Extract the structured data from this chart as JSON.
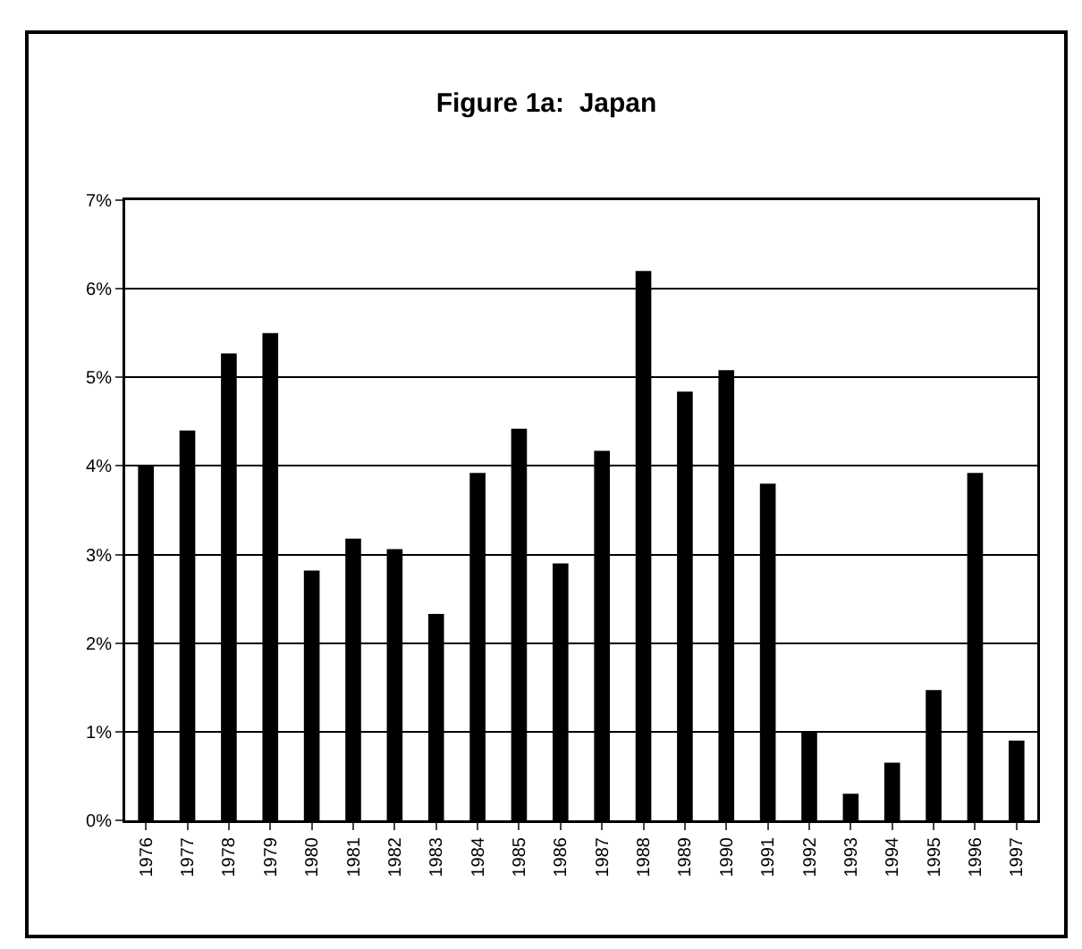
{
  "chart_data": {
    "type": "bar",
    "title": "Figure 1a:  Japan",
    "categories": [
      "1976",
      "1977",
      "1978",
      "1979",
      "1980",
      "1981",
      "1982",
      "1983",
      "1984",
      "1985",
      "1986",
      "1987",
      "1988",
      "1989",
      "1990",
      "1991",
      "1992",
      "1993",
      "1994",
      "1995",
      "1996",
      "1997"
    ],
    "values": [
      4.0,
      4.4,
      5.27,
      5.5,
      2.82,
      3.18,
      3.06,
      2.33,
      3.92,
      4.42,
      2.9,
      4.17,
      6.2,
      4.84,
      5.08,
      3.8,
      1.0,
      0.3,
      0.65,
      1.47,
      3.92,
      0.9
    ],
    "color": "#000000",
    "ylim": [
      0,
      7
    ],
    "yticks": [
      {
        "value": 0,
        "label": "0%"
      },
      {
        "value": 1,
        "label": "1%"
      },
      {
        "value": 2,
        "label": "2%"
      },
      {
        "value": 3,
        "label": "3%"
      },
      {
        "value": 4,
        "label": "4%"
      },
      {
        "value": 5,
        "label": "5%"
      },
      {
        "value": 6,
        "label": "6%"
      },
      {
        "value": 7,
        "label": "7%"
      }
    ],
    "grid": "y"
  }
}
